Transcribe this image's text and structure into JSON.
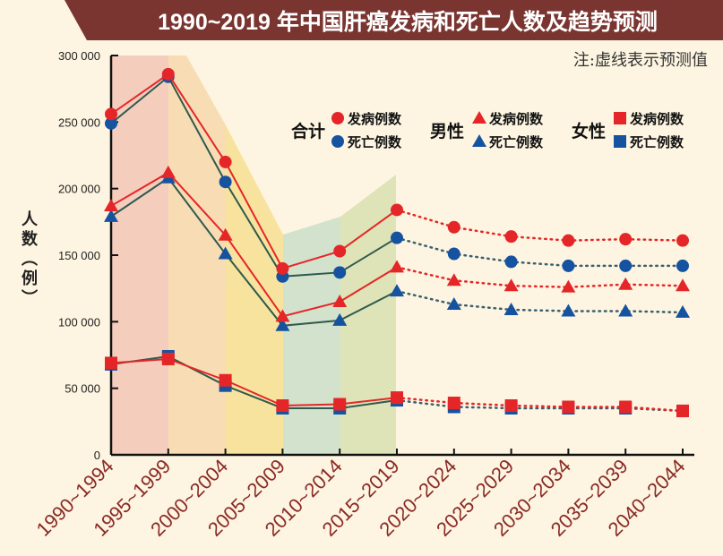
{
  "chart_data": {
    "type": "line",
    "title": "1990~2019 年中国肝癌发病和死亡人数及趋势预测",
    "note": "注:虚线表示预测值",
    "ylabel": "人数（例）",
    "ylim": [
      0,
      300000
    ],
    "yticks": [
      "0",
      "50 000",
      "100 000",
      "150 000",
      "200 000",
      "250 000",
      "300 000"
    ],
    "categories": [
      "1990~1994",
      "1995~1999",
      "2000~2004",
      "2005~2009",
      "2010~2014",
      "2015~2019",
      "2020~2024",
      "2025~2029",
      "2030~2034",
      "2035~2039",
      "2040~2044"
    ],
    "forecast_start_index": 5,
    "legend": {
      "groups": [
        {
          "label": "合计",
          "marker": "circle"
        },
        {
          "label": "男性",
          "marker": "triangle"
        },
        {
          "label": "女性",
          "marker": "square"
        }
      ],
      "incidence": "发病例数",
      "death": "死亡例数"
    },
    "colors": {
      "incidence": "#e52629",
      "death": "#1553a1",
      "death_line": "#2f5a4e",
      "title_bg": "#7a3530",
      "xlabel": "#8a2a26"
    },
    "series": [
      {
        "group": "合计",
        "kind": "incidence",
        "marker": "circle",
        "values": [
          256000,
          286000,
          220000,
          140000,
          153000,
          184000,
          171000,
          164000,
          161000,
          162000,
          161000
        ]
      },
      {
        "group": "合计",
        "kind": "death",
        "marker": "circle",
        "values": [
          249000,
          284000,
          205000,
          134000,
          137000,
          163000,
          151000,
          145000,
          142000,
          142000,
          142000
        ]
      },
      {
        "group": "男性",
        "kind": "incidence",
        "marker": "triangle",
        "values": [
          187000,
          212000,
          165000,
          104000,
          115000,
          141000,
          131000,
          127000,
          126000,
          128000,
          127000
        ]
      },
      {
        "group": "男性",
        "kind": "death",
        "marker": "triangle",
        "values": [
          179000,
          208000,
          151000,
          97000,
          101000,
          123000,
          113000,
          109000,
          108000,
          108000,
          107000
        ]
      },
      {
        "group": "女性",
        "kind": "incidence",
        "marker": "square",
        "values": [
          69000,
          72000,
          56000,
          37000,
          38000,
          43000,
          39000,
          37000,
          36000,
          36000,
          33000
        ]
      },
      {
        "group": "女性",
        "kind": "death",
        "marker": "square",
        "values": [
          68000,
          74000,
          52000,
          35000,
          35000,
          41000,
          36000,
          35000,
          35000,
          35000,
          33000
        ]
      }
    ]
  }
}
